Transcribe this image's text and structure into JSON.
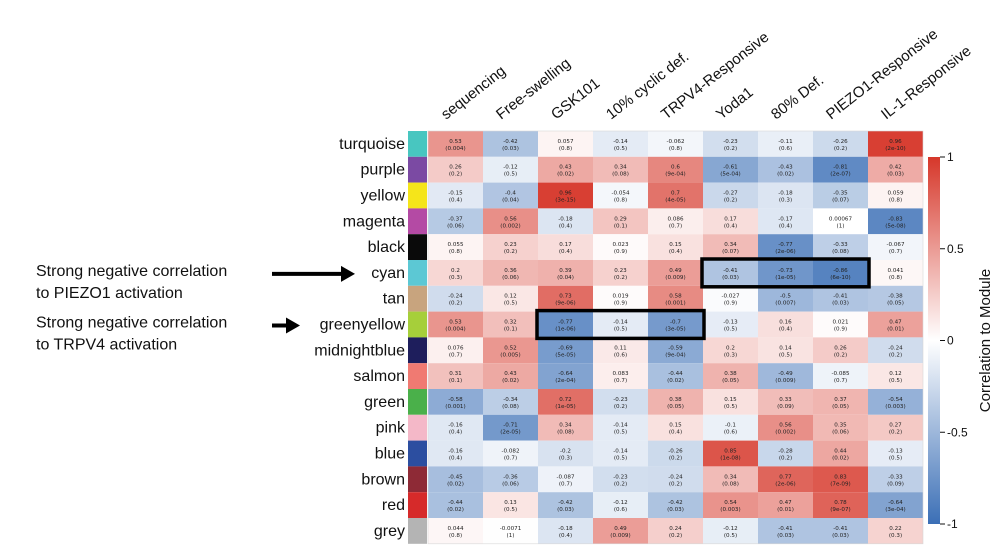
{
  "chart_data": {
    "type": "heatmap",
    "title": "",
    "columns": [
      "sequencing",
      "Free-swelling",
      "GSK101",
      "10% cyclic def.",
      "TRPV4-Responsive",
      "Yoda1",
      "80% Def.",
      "PIEZO1-Responsive",
      "IL-1-Responsive"
    ],
    "rows": [
      {
        "name": "turquoise",
        "color": "#48c6c0",
        "r": [
          "0.53",
          "-0.42",
          "0.057",
          "-0.14",
          "-0.062",
          "-0.23",
          "-0.11",
          "-0.26",
          "0.96"
        ],
        "p": [
          "(0.004)",
          "(0.03)",
          "(0.8)",
          "(0.5)",
          "(0.8)",
          "(0.2)",
          "(0.6)",
          "(0.2)",
          "(2e-10)"
        ]
      },
      {
        "name": "purple",
        "color": "#7b4aa3",
        "r": [
          "0.26",
          "-0.12",
          "0.43",
          "0.34",
          "0.6",
          "-0.61",
          "-0.43",
          "-0.81",
          "0.42"
        ],
        "p": [
          "(0.2)",
          "(0.5)",
          "(0.02)",
          "(0.08)",
          "(9e-04)",
          "(5e-04)",
          "(0.02)",
          "(2e-07)",
          "(0.03)"
        ]
      },
      {
        "name": "yellow",
        "color": "#f5e51a",
        "r": [
          "-0.15",
          "-0.4",
          "0.96",
          "-0.054",
          "0.7",
          "-0.27",
          "-0.18",
          "-0.35",
          "0.059"
        ],
        "p": [
          "(0.4)",
          "(0.04)",
          "(3e-15)",
          "(0.8)",
          "(4e-05)",
          "(0.2)",
          "(0.3)",
          "(0.07)",
          "(0.8)"
        ]
      },
      {
        "name": "magenta",
        "color": "#b44aa4",
        "r": [
          "-0.37",
          "0.56",
          "-0.18",
          "0.29",
          "0.086",
          "0.17",
          "-0.17",
          "0.00067",
          "-0.83"
        ],
        "p": [
          "(0.06)",
          "(0.002)",
          "(0.4)",
          "(0.1)",
          "(0.7)",
          "(0.4)",
          "(0.4)",
          "(1)",
          "(5e-08)"
        ]
      },
      {
        "name": "black",
        "color": "#0a0a0a",
        "r": [
          "0.055",
          "0.23",
          "0.17",
          "0.023",
          "0.15",
          "0.34",
          "-0.77",
          "-0.33",
          "-0.067"
        ],
        "p": [
          "(0.8)",
          "(0.2)",
          "(0.4)",
          "(0.9)",
          "(0.4)",
          "(0.07)",
          "(2e-06)",
          "(0.08)",
          "(0.7)"
        ]
      },
      {
        "name": "cyan",
        "color": "#5cc8d4",
        "r": [
          "0.2",
          "0.36",
          "0.39",
          "0.23",
          "0.49",
          "-0.41",
          "-0.73",
          "-0.86",
          "0.041"
        ],
        "p": [
          "(0.3)",
          "(0.06)",
          "(0.04)",
          "(0.2)",
          "(0.009)",
          "(0.03)",
          "(1e-05)",
          "(6e-10)",
          "(0.8)"
        ]
      },
      {
        "name": "tan",
        "color": "#c8a47e",
        "r": [
          "-0.24",
          "0.12",
          "0.73",
          "0.019",
          "0.58",
          "-0.027",
          "-0.5",
          "-0.41",
          "-0.38"
        ],
        "p": [
          "(0.2)",
          "(0.5)",
          "(9e-06)",
          "(0.9)",
          "(0.001)",
          "(0.9)",
          "(0.007)",
          "(0.03)",
          "(0.05)"
        ]
      },
      {
        "name": "greenyellow",
        "color": "#a6cf3a",
        "r": [
          "0.53",
          "0.32",
          "-0.77",
          "-0.14",
          "-0.7",
          "-0.13",
          "0.16",
          "0.021",
          "0.47"
        ],
        "p": [
          "(0.004)",
          "(0.1)",
          "(1e-06)",
          "(0.5)",
          "(3e-05)",
          "(0.5)",
          "(0.4)",
          "(0.9)",
          "(0.01)"
        ]
      },
      {
        "name": "midnightblue",
        "color": "#1e1e5c",
        "r": [
          "0.076",
          "0.52",
          "-0.69",
          "0.11",
          "-0.59",
          "0.2",
          "0.14",
          "0.26",
          "-0.24"
        ],
        "p": [
          "(0.7)",
          "(0.005)",
          "(5e-05)",
          "(0.6)",
          "(9e-04)",
          "(0.3)",
          "(0.5)",
          "(0.2)",
          "(0.2)"
        ]
      },
      {
        "name": "salmon",
        "color": "#f07a72",
        "r": [
          "0.31",
          "0.43",
          "-0.64",
          "0.083",
          "-0.44",
          "0.38",
          "-0.49",
          "-0.085",
          "0.12"
        ],
        "p": [
          "(0.1)",
          "(0.02)",
          "(2e-04)",
          "(0.7)",
          "(0.02)",
          "(0.05)",
          "(0.009)",
          "(0.7)",
          "(0.5)"
        ]
      },
      {
        "name": "green",
        "color": "#4ab04a",
        "r": [
          "-0.58",
          "-0.34",
          "0.72",
          "-0.23",
          "0.38",
          "0.15",
          "0.33",
          "0.37",
          "-0.54"
        ],
        "p": [
          "(0.001)",
          "(0.08)",
          "(1e-05)",
          "(0.2)",
          "(0.05)",
          "(0.5)",
          "(0.09)",
          "(0.05)",
          "(0.003)"
        ]
      },
      {
        "name": "pink",
        "color": "#f4b8c8",
        "r": [
          "-0.16",
          "-0.71",
          "0.34",
          "-0.14",
          "0.15",
          "-0.1",
          "0.56",
          "0.35",
          "0.27"
        ],
        "p": [
          "(0.4)",
          "(2e-05)",
          "(0.08)",
          "(0.5)",
          "(0.4)",
          "(0.6)",
          "(0.002)",
          "(0.06)",
          "(0.2)"
        ]
      },
      {
        "name": "blue",
        "color": "#2c4ea0",
        "r": [
          "-0.16",
          "-0.082",
          "-0.2",
          "-0.14",
          "-0.26",
          "0.85",
          "-0.28",
          "0.44",
          "-0.13"
        ],
        "p": [
          "(0.4)",
          "(0.7)",
          "(0.3)",
          "(0.5)",
          "(0.2)",
          "(1e-08)",
          "(0.2)",
          "(0.02)",
          "(0.5)"
        ]
      },
      {
        "name": "brown",
        "color": "#8e2a36",
        "r": [
          "-0.45",
          "-0.36",
          "-0.087",
          "-0.23",
          "-0.24",
          "0.34",
          "0.77",
          "0.83",
          "-0.33"
        ],
        "p": [
          "(0.02)",
          "(0.06)",
          "(0.7)",
          "(0.2)",
          "(0.2)",
          "(0.08)",
          "(2e-06)",
          "(7e-09)",
          "(0.09)"
        ]
      },
      {
        "name": "red",
        "color": "#d62a2a",
        "r": [
          "-0.44",
          "0.13",
          "-0.42",
          "-0.12",
          "-0.42",
          "0.54",
          "0.47",
          "0.78",
          "-0.64"
        ],
        "p": [
          "(0.02)",
          "(0.5)",
          "(0.03)",
          "(0.6)",
          "(0.03)",
          "(0.003)",
          "(0.01)",
          "(9e-07)",
          "(3e-04)"
        ]
      },
      {
        "name": "grey",
        "color": "#b4b4b4",
        "r": [
          "0.044",
          "-0.0071",
          "-0.18",
          "0.49",
          "0.24",
          "-0.12",
          "-0.41",
          "-0.41",
          "0.22"
        ],
        "p": [
          "(0.8)",
          "(1)",
          "(0.4)",
          "(0.009)",
          "(0.2)",
          "(0.5)",
          "(0.03)",
          "(0.03)",
          "(0.3)"
        ]
      }
    ],
    "colorbar": {
      "title": "Correlation to Module",
      "range": [
        -1,
        1
      ],
      "ticks": [
        "1",
        "0.5",
        "0",
        "-0.5",
        "-1"
      ],
      "tick_values": [
        1,
        0.5,
        0,
        -0.5,
        -1
      ],
      "low_color": "#3b6fb6",
      "mid_color": "#ffffff",
      "high_color": "#d6372a"
    },
    "highlights": [
      {
        "row": "cyan",
        "columns": [
          "Yoda1",
          "80% Def.",
          "PIEZO1-Responsive"
        ]
      },
      {
        "row": "greenyellow",
        "columns": [
          "GSK101",
          "10% cyclic def.",
          "TRPV4-Responsive"
        ]
      }
    ],
    "annotations": [
      {
        "target_row": "cyan",
        "lines": [
          "Strong negative correlation",
          "to PIEZO1 activation"
        ]
      },
      {
        "target_row": "greenyellow",
        "lines": [
          "Strong negative correlation",
          "to TRPV4 activation"
        ]
      }
    ]
  }
}
